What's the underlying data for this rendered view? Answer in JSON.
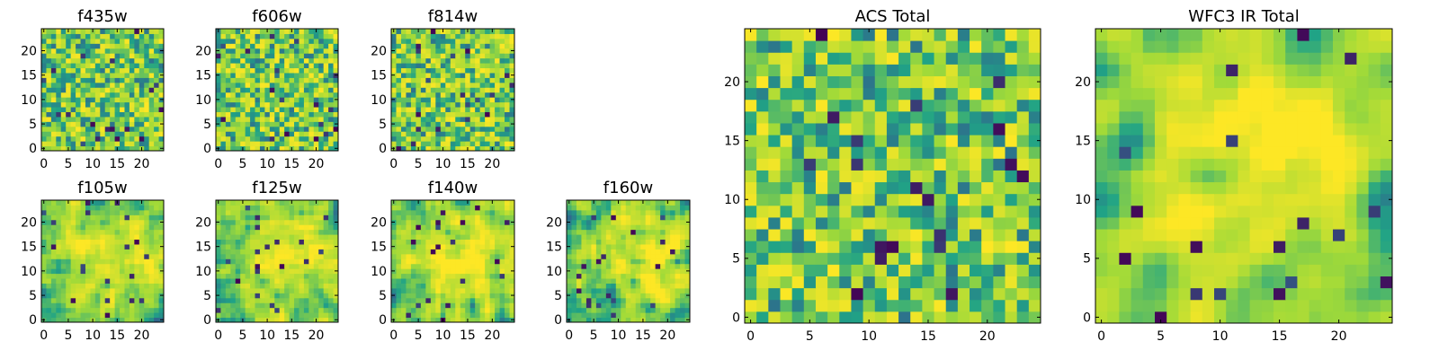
{
  "figure": {
    "colormap": [
      "#440154",
      "#30678d",
      "#20a386",
      "#a0da39",
      "#fde725"
    ]
  },
  "chart_data": [
    {
      "type": "heatmap",
      "title": "f435w",
      "xlim": [
        -0.5,
        24.5
      ],
      "ylim": [
        -0.5,
        24.5
      ],
      "xticks": [
        0,
        5,
        10,
        15,
        20
      ],
      "yticks": [
        0,
        5,
        10,
        15,
        20
      ],
      "grid_size": 25,
      "seed": 11,
      "smooth": 0,
      "value_range": [
        0,
        1
      ]
    },
    {
      "type": "heatmap",
      "title": "f606w",
      "xlim": [
        -0.5,
        24.5
      ],
      "ylim": [
        -0.5,
        24.5
      ],
      "xticks": [
        0,
        5,
        10,
        15,
        20
      ],
      "yticks": [
        0,
        5,
        10,
        15,
        20
      ],
      "grid_size": 25,
      "seed": 23,
      "smooth": 0,
      "value_range": [
        0,
        1
      ]
    },
    {
      "type": "heatmap",
      "title": "f814w",
      "xlim": [
        -0.5,
        24.5
      ],
      "ylim": [
        -0.5,
        24.5
      ],
      "xticks": [
        0,
        5,
        10,
        15,
        20
      ],
      "yticks": [
        0,
        5,
        10,
        15,
        20
      ],
      "grid_size": 25,
      "seed": 37,
      "smooth": 0,
      "value_range": [
        0,
        1
      ]
    },
    {
      "type": "heatmap",
      "title": "f105w",
      "xlim": [
        -0.5,
        24.5
      ],
      "ylim": [
        -0.5,
        24.5
      ],
      "xticks": [
        0,
        5,
        10,
        15,
        20
      ],
      "yticks": [
        0,
        5,
        10,
        15,
        20
      ],
      "grid_size": 25,
      "seed": 41,
      "smooth": 1,
      "value_range": [
        0,
        1
      ]
    },
    {
      "type": "heatmap",
      "title": "f125w",
      "xlim": [
        -0.5,
        24.5
      ],
      "ylim": [
        -0.5,
        24.5
      ],
      "xticks": [
        0,
        5,
        10,
        15,
        20
      ],
      "yticks": [
        0,
        5,
        10,
        15,
        20
      ],
      "grid_size": 25,
      "seed": 53,
      "smooth": 1,
      "value_range": [
        0,
        1
      ]
    },
    {
      "type": "heatmap",
      "title": "f140w",
      "xlim": [
        -0.5,
        24.5
      ],
      "ylim": [
        -0.5,
        24.5
      ],
      "xticks": [
        0,
        5,
        10,
        15,
        20
      ],
      "yticks": [
        0,
        5,
        10,
        15,
        20
      ],
      "grid_size": 25,
      "seed": 67,
      "smooth": 1,
      "value_range": [
        0,
        1
      ]
    },
    {
      "type": "heatmap",
      "title": "f160w",
      "xlim": [
        -0.5,
        24.5
      ],
      "ylim": [
        -0.5,
        24.5
      ],
      "xticks": [
        0,
        5,
        10,
        15,
        20
      ],
      "yticks": [
        0,
        5,
        10,
        15,
        20
      ],
      "grid_size": 25,
      "seed": 79,
      "smooth": 1,
      "value_range": [
        0,
        1
      ]
    },
    {
      "type": "heatmap",
      "title": "ACS Total",
      "xlim": [
        -0.5,
        24.5
      ],
      "ylim": [
        -0.5,
        24.5
      ],
      "xticks": [
        0,
        5,
        10,
        15,
        20
      ],
      "yticks": [
        0,
        5,
        10,
        15,
        20
      ],
      "grid_size": 25,
      "seed": 97,
      "smooth": 0,
      "value_range": [
        0,
        1
      ]
    },
    {
      "type": "heatmap",
      "title": "WFC3 IR Total",
      "xlim": [
        -0.5,
        24.5
      ],
      "ylim": [
        -0.5,
        24.5
      ],
      "xticks": [
        0,
        5,
        10,
        15,
        20
      ],
      "yticks": [
        0,
        5,
        10,
        15,
        20
      ],
      "grid_size": 25,
      "seed": 113,
      "smooth": 2,
      "value_range": [
        0,
        1
      ]
    }
  ]
}
